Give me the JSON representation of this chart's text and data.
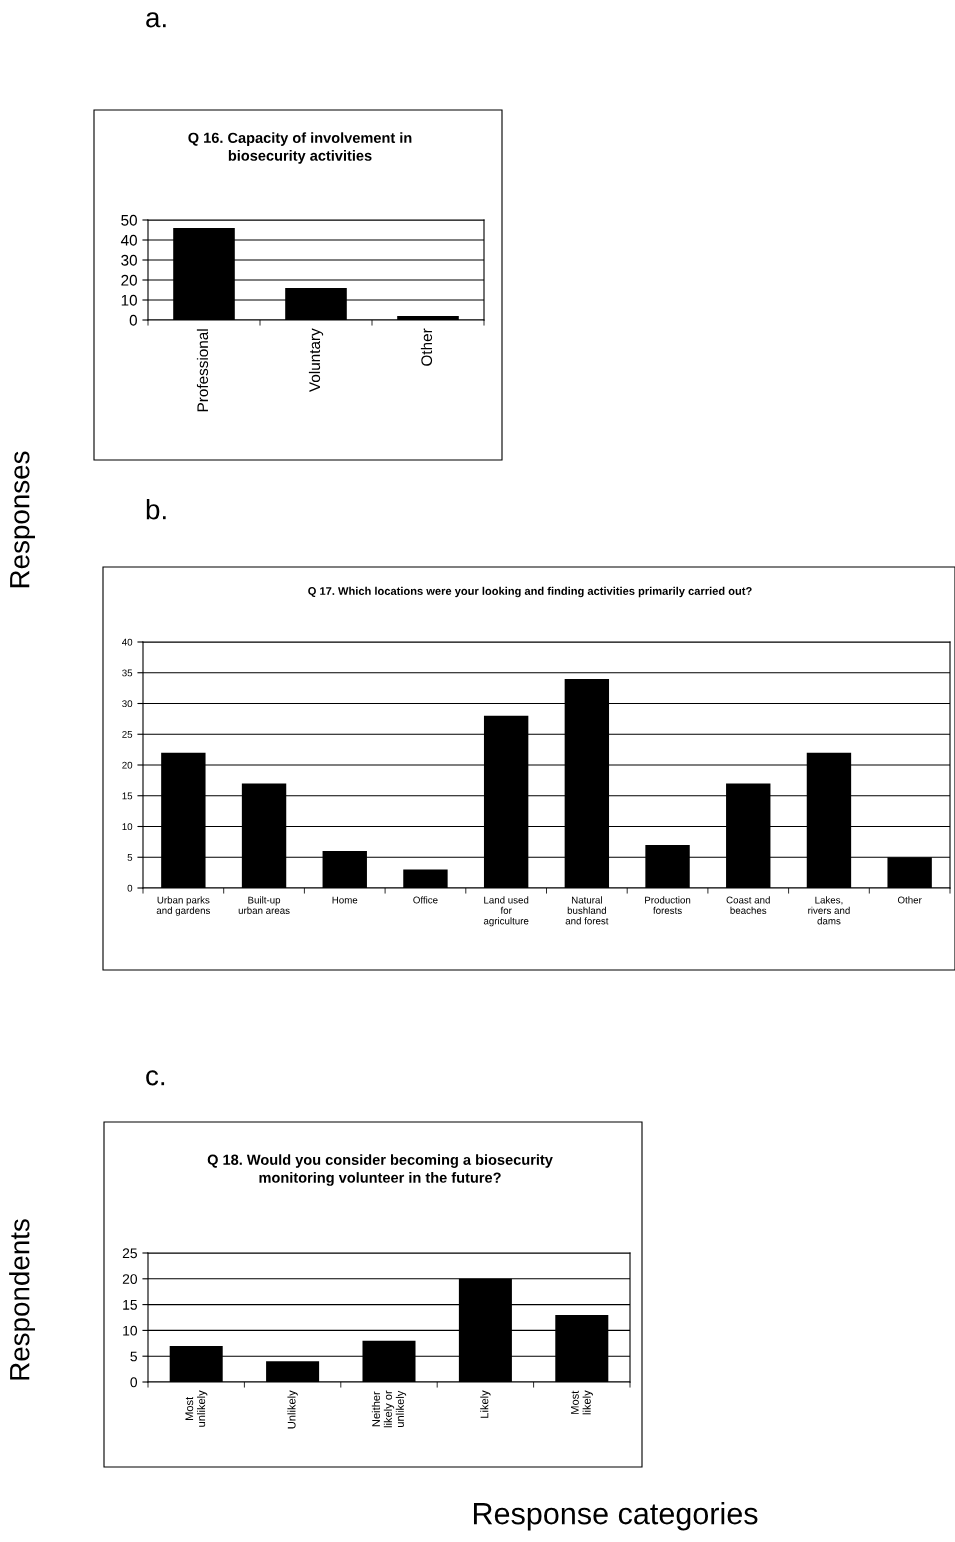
{
  "chart_data": [
    {
      "type": "bar",
      "title": "Q 16. Capacity of involvement in biosecurity activities",
      "ylabel": "Responses",
      "annotations": [
        "a."
      ],
      "categories": [
        "Professional",
        "Voluntary",
        "Other"
      ],
      "values": [
        46,
        16,
        2
      ],
      "color": "#000000",
      "ylim": [
        0,
        50
      ],
      "yticks": [
        0,
        10,
        20,
        30,
        40,
        50
      ],
      "grid": "y"
    },
    {
      "type": "bar",
      "title": "Q 17. Which locations were your looking and finding activities primarily carried out?",
      "annotations": [
        "b."
      ],
      "categories": [
        "Urban parks\nand gardens",
        "Built-up\nurban areas",
        "Home",
        "Office",
        "Land used\nfor\nagriculture",
        "Natural\nbushland\nand forest",
        "Production\nforests",
        "Coast and\nbeaches",
        "Lakes,\nrivers and\ndams",
        "Other"
      ],
      "values": [
        22,
        17,
        6,
        3,
        28,
        34,
        7,
        17,
        22,
        5
      ],
      "color": "#000000",
      "ylim": [
        0,
        40
      ],
      "yticks": [
        0,
        5,
        10,
        15,
        20,
        25,
        30,
        35,
        40
      ],
      "grid": "y"
    },
    {
      "type": "bar",
      "title": "Q 18. Would you consider becoming a biosecurity monitoring volunteer in the future?",
      "ylabel": "Respondents",
      "xlabel": "Response categories",
      "annotations": [
        "c."
      ],
      "categories": [
        "Most\nunlikely",
        "Unlikely",
        "Neither\nlikely or\nunlikely",
        "Likely",
        "Most\nlikely"
      ],
      "values": [
        7,
        4,
        8,
        20,
        13
      ],
      "color": "#000000",
      "ylim": [
        0,
        25
      ],
      "yticks": [
        0,
        5,
        10,
        15,
        20,
        25
      ],
      "grid": "y"
    }
  ]
}
